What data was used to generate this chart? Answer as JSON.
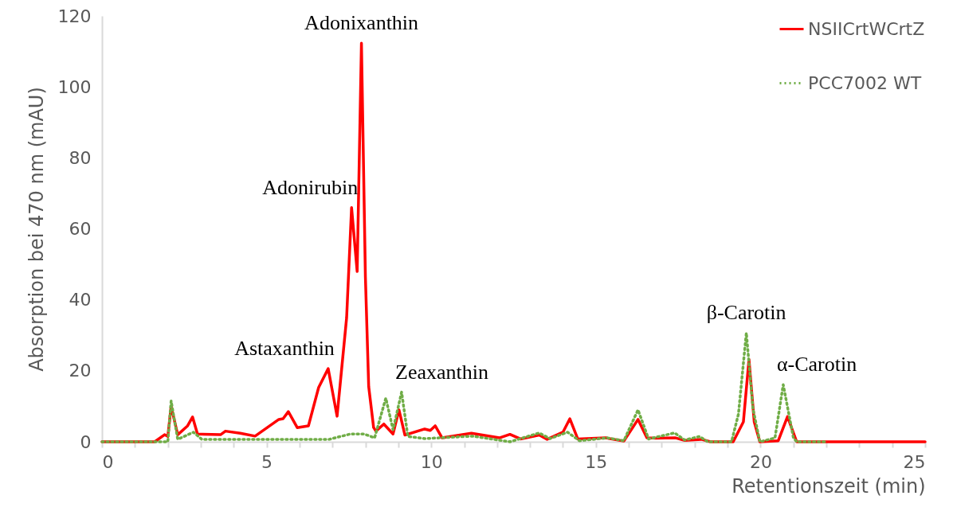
{
  "chart_data": {
    "type": "line",
    "xlabel": "Retentionszeit (min)",
    "ylabel": "Absorption bei 470 nm (mAU)",
    "xlim": [
      0,
      25
    ],
    "ylim": [
      0,
      120
    ],
    "xticks": [
      0,
      {
        "value": 1,
        "label": null
      },
      {
        "value": 2,
        "label": null
      },
      {
        "value": 3,
        "label": null
      },
      {
        "value": 4,
        "label": null
      },
      5,
      {
        "value": 6,
        "label": null
      },
      {
        "value": 7,
        "label": null
      },
      {
        "value": 8,
        "label": null
      },
      {
        "value": 9,
        "label": null
      },
      10,
      {
        "value": 11,
        "label": null
      },
      {
        "value": 12,
        "label": null
      },
      {
        "value": 13,
        "label": null
      },
      {
        "value": 14,
        "label": null
      },
      15,
      {
        "value": 16,
        "label": null
      },
      {
        "value": 17,
        "label": null
      },
      {
        "value": 18,
        "label": null
      },
      {
        "value": 19,
        "label": null
      },
      20,
      {
        "value": 21,
        "label": null
      },
      {
        "value": 22,
        "label": null
      },
      {
        "value": 23,
        "label": null
      },
      {
        "value": 24,
        "label": null
      },
      25
    ],
    "yticks": [
      0,
      20,
      40,
      60,
      80,
      100,
      120
    ],
    "grid": false,
    "legend": "top right",
    "series": [
      {
        "name": "NSIICrtWCrtZ",
        "color": "#ff0000",
        "line_style": "solid",
        "x": [
          0,
          1.6,
          1.9,
          2.0,
          2.1,
          2.3,
          2.6,
          2.75,
          2.9,
          3.6,
          3.75,
          4.2,
          4.65,
          5.37,
          5.5,
          5.66,
          5.93,
          6.27,
          6.58,
          6.87,
          7.14,
          7.43,
          7.58,
          7.75,
          7.88,
          8.0,
          8.1,
          8.25,
          8.32,
          8.56,
          8.84,
          9.02,
          9.2,
          9.8,
          9.97,
          10.12,
          10.33,
          11.22,
          12.07,
          12.39,
          12.71,
          13.28,
          13.52,
          14.0,
          14.21,
          14.45,
          15.3,
          15.85,
          16.28,
          16.55,
          16.82,
          17.42,
          17.7,
          18.2,
          18.48,
          19.17,
          19.48,
          19.65,
          19.81,
          19.98,
          20.54,
          20.82,
          21.1,
          25
        ],
        "values": [
          0,
          0,
          2,
          1.5,
          10,
          2,
          4.5,
          7,
          2.2,
          2,
          3,
          2.4,
          1.6,
          6.3,
          6.5,
          8.5,
          4,
          4.5,
          15.3,
          20.6,
          7.2,
          35,
          66,
          48,
          112.3,
          46.5,
          15.6,
          4,
          3,
          5,
          2.2,
          9,
          1.9,
          3.6,
          3.2,
          4.5,
          1.1,
          2.4,
          1.1,
          2.1,
          0.8,
          1.9,
          0.7,
          2.7,
          6.5,
          0.8,
          1.1,
          0.2,
          6.3,
          1.1,
          1.0,
          1.1,
          0.4,
          0.7,
          0,
          0,
          5.6,
          23.2,
          5.6,
          0,
          0.3,
          7.1,
          0,
          0
        ]
      },
      {
        "name": "PCC7002 WT",
        "color": "#70ad47",
        "line_style": "dotted",
        "x": [
          0,
          2.0,
          2.1,
          2.3,
          2.78,
          3.03,
          6.9,
          7.55,
          7.96,
          8.28,
          8.62,
          8.84,
          9.1,
          9.29,
          9.8,
          11.25,
          12.39,
          13.28,
          13.6,
          14.14,
          14.5,
          15.35,
          15.85,
          16.28,
          16.6,
          17.39,
          17.7,
          18.15,
          18.4,
          19.12,
          19.33,
          19.57,
          19.77,
          19.98,
          20.44,
          20.69,
          21.0,
          21.1,
          22
        ],
        "values": [
          0,
          0,
          11.5,
          0.7,
          2.7,
          0.7,
          0.7,
          2.2,
          2.2,
          1.1,
          12.3,
          3.4,
          14,
          1.5,
          0.9,
          1.6,
          0,
          2.5,
          0.9,
          2.7,
          0.3,
          1.1,
          0.3,
          9,
          0.8,
          2.5,
          0.5,
          1.5,
          0,
          0,
          7.8,
          30.7,
          9.4,
          0,
          1.1,
          16.1,
          1.1,
          0,
          0
        ]
      }
    ],
    "annotations": [
      {
        "text": "Adonixanthin",
        "x": 7.88,
        "y": 112.3
      },
      {
        "text": "Adonirubin",
        "x": 7.58,
        "y": 66
      },
      {
        "text": "Astaxanthin",
        "x": 6.87,
        "y": 20.6
      },
      {
        "text": "Zeaxanthin",
        "x": 9.1,
        "y": 14
      },
      {
        "text": "β-Carotin",
        "x": 19.57,
        "y": 30.7
      },
      {
        "text": "α-Carotin",
        "x": 20.69,
        "y": 16.1
      }
    ]
  }
}
